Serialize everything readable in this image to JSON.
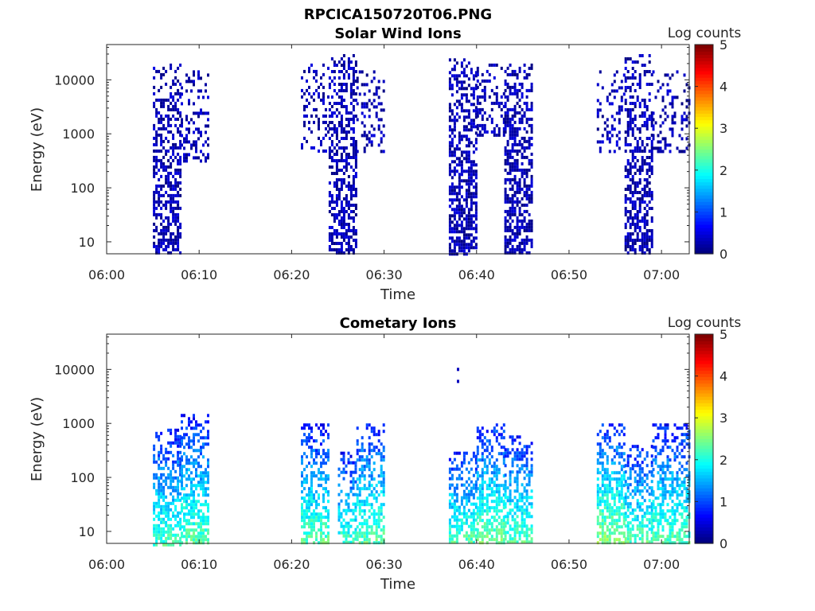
{
  "figure": {
    "title": "RPCICA150720T06.PNG"
  },
  "chart_data": [
    {
      "type": "heatmap",
      "title": "Solar Wind Ions",
      "xlabel": "Time",
      "ylabel": "Energy (eV)",
      "x_ticks": [
        "06:00",
        "06:10",
        "06:20",
        "06:30",
        "06:40",
        "06:50",
        "07:00"
      ],
      "y_ticks": [
        "10",
        "100",
        "1000",
        "10000"
      ],
      "y_scale": "log",
      "ylim": [
        6,
        45000
      ],
      "xlim": [
        "06:00",
        "07:03"
      ],
      "colorbar": {
        "label": "Log counts",
        "ticks": [
          "0",
          "1",
          "2",
          "3",
          "4",
          "5"
        ],
        "range": [
          0,
          5
        ],
        "colormap": "jet"
      },
      "bursts": [
        {
          "start": "06:05",
          "end": "06:08",
          "emin": 6,
          "emax": 20000,
          "level": 0.35,
          "density": 0.55
        },
        {
          "start": "06:08",
          "end": "06:11",
          "emin": 300,
          "emax": 15000,
          "level": 0.3,
          "density": 0.3
        },
        {
          "start": "06:21",
          "end": "06:24",
          "emin": 500,
          "emax": 20000,
          "level": 0.3,
          "density": 0.25
        },
        {
          "start": "06:24",
          "end": "06:27",
          "emin": 6,
          "emax": 30000,
          "level": 0.35,
          "density": 0.55
        },
        {
          "start": "06:27",
          "end": "06:30",
          "emin": 500,
          "emax": 15000,
          "level": 0.3,
          "density": 0.25
        },
        {
          "start": "06:37",
          "end": "06:40",
          "emin": 6,
          "emax": 25000,
          "level": 0.35,
          "density": 0.6
        },
        {
          "start": "06:40",
          "end": "06:43",
          "emin": 1000,
          "emax": 20000,
          "level": 0.3,
          "density": 0.3
        },
        {
          "start": "06:43",
          "end": "06:46",
          "emin": 6,
          "emax": 20000,
          "level": 0.35,
          "density": 0.6
        },
        {
          "start": "06:53",
          "end": "06:56",
          "emin": 500,
          "emax": 15000,
          "level": 0.3,
          "density": 0.25
        },
        {
          "start": "06:56",
          "end": "06:59",
          "emin": 6,
          "emax": 30000,
          "level": 0.35,
          "density": 0.55
        },
        {
          "start": "06:59",
          "end": "07:03",
          "emin": 500,
          "emax": 15000,
          "level": 0.3,
          "density": 0.25
        }
      ]
    },
    {
      "type": "heatmap",
      "title": "Cometary Ions",
      "xlabel": "Time",
      "ylabel": "Energy (eV)",
      "x_ticks": [
        "06:00",
        "06:10",
        "06:20",
        "06:30",
        "06:40",
        "06:50",
        "07:00"
      ],
      "y_ticks": [
        "10",
        "100",
        "1000",
        "10000"
      ],
      "y_scale": "log",
      "ylim": [
        6,
        45000
      ],
      "xlim": [
        "06:00",
        "07:03"
      ],
      "colorbar": {
        "label": "Log counts",
        "ticks": [
          "0",
          "1",
          "2",
          "3",
          "4",
          "5"
        ],
        "range": [
          0,
          5
        ],
        "colormap": "jet"
      },
      "bursts": [
        {
          "start": "06:05",
          "end": "06:08",
          "emin": 6,
          "emax": 800,
          "level": 1.7,
          "density": 0.6
        },
        {
          "start": "06:08",
          "end": "06:11",
          "emin": 6,
          "emax": 1500,
          "level": 1.8,
          "density": 0.6
        },
        {
          "start": "06:21",
          "end": "06:24",
          "emin": 6,
          "emax": 1000,
          "level": 1.8,
          "density": 0.55
        },
        {
          "start": "06:25",
          "end": "06:27",
          "emin": 6,
          "emax": 300,
          "level": 1.7,
          "density": 0.55
        },
        {
          "start": "06:27",
          "end": "06:30",
          "emin": 6,
          "emax": 1000,
          "level": 1.8,
          "density": 0.55
        },
        {
          "start": "06:37",
          "end": "06:40",
          "emin": 6,
          "emax": 300,
          "level": 1.8,
          "density": 0.6
        },
        {
          "start": "06:40",
          "end": "06:43",
          "emin": 6,
          "emax": 1000,
          "level": 1.9,
          "density": 0.6
        },
        {
          "start": "06:43",
          "end": "06:46",
          "emin": 6,
          "emax": 600,
          "level": 1.8,
          "density": 0.6
        },
        {
          "start": "06:53",
          "end": "06:56",
          "emin": 6,
          "emax": 1000,
          "level": 2.0,
          "density": 0.6
        },
        {
          "start": "06:56",
          "end": "06:59",
          "emin": 6,
          "emax": 400,
          "level": 1.8,
          "density": 0.55
        },
        {
          "start": "06:59",
          "end": "07:03",
          "emin": 6,
          "emax": 1000,
          "level": 1.8,
          "density": 0.55
        }
      ],
      "points": [
        {
          "t": "06:38",
          "e": 10000,
          "level": 0.3
        },
        {
          "t": "06:38",
          "e": 6000,
          "level": 0.3
        }
      ]
    }
  ]
}
